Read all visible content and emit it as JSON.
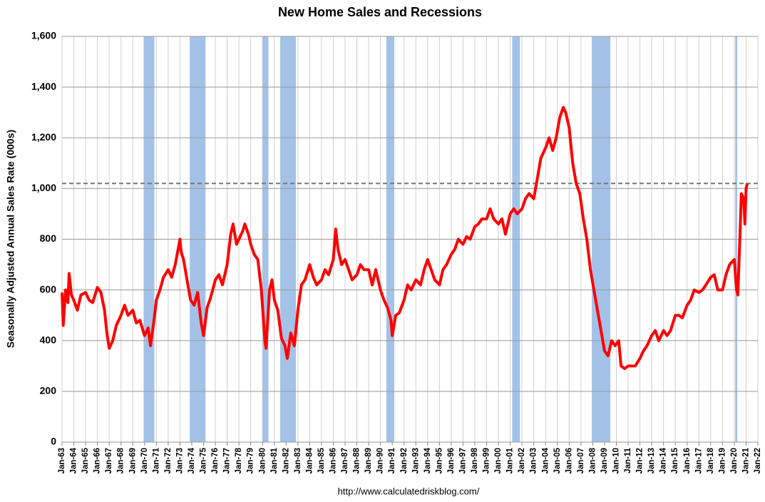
{
  "chart_data": {
    "type": "line",
    "title": "New Home Sales and Recessions",
    "y_label": "Seasonally Adjusted Annual Sales Rate (000s)",
    "source": "http://www.calculatedriskblog.com/",
    "ylim": [
      0,
      1600
    ],
    "yticks": [
      0,
      200,
      400,
      600,
      800,
      {
        "value": 1000,
        "label": "1,000"
      },
      {
        "value": 1200,
        "label": "1,200"
      },
      {
        "value": 1400,
        "label": "1,400"
      },
      {
        "value": 1600,
        "label": "1,600"
      }
    ],
    "xlim": [
      1963,
      2022
    ],
    "xticks": [
      {
        "value": 1963,
        "label": "Jan-63"
      },
      {
        "value": 1964,
        "label": "Jan-64"
      },
      {
        "value": 1965,
        "label": "Jan-65"
      },
      {
        "value": 1966,
        "label": "Jan-66"
      },
      {
        "value": 1967,
        "label": "Jan-67"
      },
      {
        "value": 1968,
        "label": "Jan-68"
      },
      {
        "value": 1969,
        "label": "Jan-69"
      },
      {
        "value": 1970,
        "label": "Jan-70"
      },
      {
        "value": 1971,
        "label": "Jan-71"
      },
      {
        "value": 1972,
        "label": "Jan-72"
      },
      {
        "value": 1973,
        "label": "Jan-73"
      },
      {
        "value": 1974,
        "label": "Jan-74"
      },
      {
        "value": 1975,
        "label": "Jan-75"
      },
      {
        "value": 1976,
        "label": "Jan-76"
      },
      {
        "value": 1977,
        "label": "Jan-77"
      },
      {
        "value": 1978,
        "label": "Jan-78"
      },
      {
        "value": 1979,
        "label": "Jan-79"
      },
      {
        "value": 1980,
        "label": "Jan-80"
      },
      {
        "value": 1981,
        "label": "Jan-81"
      },
      {
        "value": 1982,
        "label": "Jan-82"
      },
      {
        "value": 1983,
        "label": "Jan-83"
      },
      {
        "value": 1984,
        "label": "Jan-84"
      },
      {
        "value": 1985,
        "label": "Jan-85"
      },
      {
        "value": 1986,
        "label": "Jan-86"
      },
      {
        "value": 1987,
        "label": "Jan-87"
      },
      {
        "value": 1988,
        "label": "Jan-88"
      },
      {
        "value": 1989,
        "label": "Jan-89"
      },
      {
        "value": 1990,
        "label": "Jan-90"
      },
      {
        "value": 1991,
        "label": "Jan-91"
      },
      {
        "value": 1992,
        "label": "Jan-92"
      },
      {
        "value": 1993,
        "label": "Jan-93"
      },
      {
        "value": 1994,
        "label": "Jan-94"
      },
      {
        "value": 1995,
        "label": "Jan-95"
      },
      {
        "value": 1996,
        "label": "Jan-96"
      },
      {
        "value": 1997,
        "label": "Jan-97"
      },
      {
        "value": 1998,
        "label": "Jan-98"
      },
      {
        "value": 1999,
        "label": "Jan-99"
      },
      {
        "value": 2000,
        "label": "Jan-00"
      },
      {
        "value": 2001,
        "label": "Jan-01"
      },
      {
        "value": 2002,
        "label": "Jan-02"
      },
      {
        "value": 2003,
        "label": "Jan-03"
      },
      {
        "value": 2004,
        "label": "Jan-04"
      },
      {
        "value": 2005,
        "label": "Jan-05"
      },
      {
        "value": 2006,
        "label": "Jan-06"
      },
      {
        "value": 2007,
        "label": "Jan-07"
      },
      {
        "value": 2008,
        "label": "Jan-08"
      },
      {
        "value": 2009,
        "label": "Jan-09"
      },
      {
        "value": 2010,
        "label": "Jan-10"
      },
      {
        "value": 2011,
        "label": "Jan-11"
      },
      {
        "value": 2012,
        "label": "Jan-12"
      },
      {
        "value": 2013,
        "label": "Jan-13"
      },
      {
        "value": 2014,
        "label": "Jan-14"
      },
      {
        "value": 2015,
        "label": "Jan-15"
      },
      {
        "value": 2016,
        "label": "Jan-16"
      },
      {
        "value": 2017,
        "label": "Jan-17"
      },
      {
        "value": 2018,
        "label": "Jan-18"
      },
      {
        "value": 2019,
        "label": "Jan-19"
      },
      {
        "value": 2020,
        "label": "Jan-20"
      },
      {
        "value": 2021,
        "label": "Jan-21"
      },
      {
        "value": 2022,
        "label": "Jan-22"
      }
    ],
    "grid": true,
    "recession_color": "#a4c2e8",
    "recessions": [
      [
        1969.92,
        1970.83
      ],
      [
        1973.83,
        1975.17
      ],
      [
        1980.0,
        1980.5
      ],
      [
        1981.5,
        1982.83
      ],
      [
        1990.5,
        1991.17
      ],
      [
        2001.17,
        2001.83
      ],
      [
        2007.92,
        2009.5
      ],
      [
        2020.08,
        2020.25
      ]
    ],
    "reference_line": 1020,
    "series": [
      {
        "color": "#ff0000",
        "x": [
          1963.0,
          1963.1,
          1963.3,
          1963.5,
          1963.6,
          1963.8,
          1964.0,
          1964.3,
          1964.6,
          1965.0,
          1965.3,
          1965.6,
          1966.0,
          1966.3,
          1966.6,
          1966.8,
          1967.0,
          1967.3,
          1967.6,
          1968.0,
          1968.3,
          1968.6,
          1969.0,
          1969.3,
          1969.6,
          1970.0,
          1970.3,
          1970.5,
          1970.8,
          1971.0,
          1971.3,
          1971.6,
          1972.0,
          1972.3,
          1972.6,
          1973.0,
          1973.1,
          1973.3,
          1973.6,
          1973.9,
          1974.2,
          1974.5,
          1974.8,
          1975.0,
          1975.3,
          1975.6,
          1976.0,
          1976.3,
          1976.6,
          1977.0,
          1977.3,
          1977.5,
          1977.8,
          1978.0,
          1978.3,
          1978.5,
          1978.8,
          1979.0,
          1979.3,
          1979.6,
          1979.9,
          1980.2,
          1980.3,
          1980.6,
          1980.8,
          1981.0,
          1981.3,
          1981.6,
          1981.9,
          1982.1,
          1982.4,
          1982.7,
          1983.0,
          1983.3,
          1983.6,
          1984.0,
          1984.3,
          1984.6,
          1985.0,
          1985.3,
          1985.6,
          1986.0,
          1986.2,
          1986.4,
          1986.7,
          1987.0,
          1987.3,
          1987.6,
          1988.0,
          1988.3,
          1988.6,
          1989.0,
          1989.3,
          1989.6,
          1990.0,
          1990.3,
          1990.6,
          1990.9,
          1991.0,
          1991.3,
          1991.6,
          1992.0,
          1992.3,
          1992.6,
          1993.0,
          1993.4,
          1993.7,
          1994.0,
          1994.3,
          1994.6,
          1995.0,
          1995.3,
          1995.6,
          1996.0,
          1996.3,
          1996.6,
          1997.0,
          1997.3,
          1997.6,
          1998.0,
          1998.3,
          1998.6,
          1999.0,
          1999.3,
          1999.6,
          2000.0,
          2000.3,
          2000.6,
          2001.0,
          2001.3,
          2001.6,
          2002.0,
          2002.3,
          2002.6,
          2003.0,
          2003.3,
          2003.6,
          2004.0,
          2004.3,
          2004.6,
          2004.9,
          2005.2,
          2005.5,
          2005.7,
          2006.0,
          2006.3,
          2006.6,
          2006.9,
          2007.2,
          2007.5,
          2007.8,
          2008.1,
          2008.4,
          2008.7,
          2009.0,
          2009.3,
          2009.6,
          2009.9,
          2010.2,
          2010.4,
          2010.7,
          2011.0,
          2011.3,
          2011.6,
          2012.0,
          2012.3,
          2012.6,
          2013.0,
          2013.3,
          2013.6,
          2014.0,
          2014.3,
          2014.6,
          2015.0,
          2015.3,
          2015.6,
          2016.0,
          2016.3,
          2016.6,
          2017.0,
          2017.3,
          2017.6,
          2018.0,
          2018.3,
          2018.6,
          2019.0,
          2019.3,
          2019.6,
          2020.0,
          2020.2,
          2020.3,
          2020.5,
          2020.6,
          2020.8,
          2020.9,
          2021.0,
          2021.1
        ],
        "values": [
          590,
          460,
          600,
          550,
          665,
          580,
          560,
          520,
          580,
          590,
          560,
          550,
          610,
          590,
          520,
          430,
          370,
          400,
          460,
          500,
          540,
          500,
          520,
          470,
          480,
          420,
          450,
          380,
          480,
          560,
          600,
          650,
          680,
          650,
          700,
          800,
          750,
          720,
          640,
          560,
          540,
          590,
          470,
          420,
          530,
          570,
          640,
          660,
          620,
          700,
          820,
          860,
          780,
          800,
          830,
          860,
          820,
          780,
          740,
          720,
          600,
          400,
          370,
          600,
          640,
          560,
          520,
          410,
          380,
          330,
          430,
          380,
          520,
          620,
          640,
          700,
          650,
          620,
          640,
          680,
          660,
          720,
          840,
          760,
          700,
          720,
          680,
          640,
          660,
          700,
          680,
          680,
          620,
          680,
          600,
          560,
          530,
          480,
          420,
          500,
          510,
          560,
          620,
          600,
          640,
          620,
          680,
          720,
          680,
          640,
          620,
          680,
          700,
          740,
          760,
          800,
          780,
          810,
          800,
          850,
          860,
          880,
          880,
          920,
          880,
          860,
          880,
          820,
          900,
          920,
          900,
          920,
          960,
          980,
          960,
          1040,
          1120,
          1160,
          1200,
          1150,
          1200,
          1280,
          1320,
          1300,
          1240,
          1100,
          1020,
          980,
          880,
          800,
          680,
          600,
          520,
          440,
          360,
          340,
          400,
          380,
          400,
          300,
          290,
          300,
          300,
          300,
          330,
          360,
          380,
          420,
          440,
          400,
          440,
          420,
          440,
          500,
          500,
          490,
          540,
          560,
          600,
          590,
          600,
          620,
          650,
          660,
          600,
          600,
          660,
          700,
          720,
          600,
          580,
          840,
          980,
          960,
          860,
          1000,
          1020
        ]
      }
    ]
  }
}
